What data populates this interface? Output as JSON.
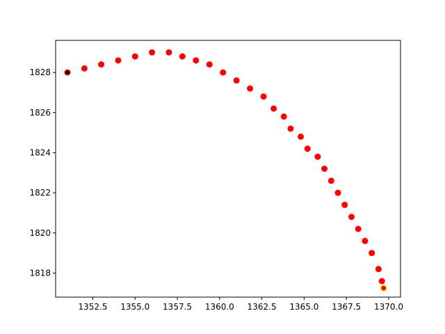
{
  "chart_data": {
    "type": "scatter",
    "title": "",
    "xlabel": "",
    "ylabel": "",
    "xlim": [
      1350.3,
      1370.7
    ],
    "ylim": [
      1816.8,
      1829.6
    ],
    "x_ticks": [
      1352.5,
      1355.0,
      1357.5,
      1360.0,
      1362.5,
      1365.0,
      1367.5,
      1370.0
    ],
    "x_tick_labels": [
      "1352.5",
      "1355.0",
      "1357.5",
      "1360.0",
      "1362.5",
      "1365.0",
      "1367.5",
      "1370.0"
    ],
    "y_ticks": [
      1818,
      1820,
      1822,
      1824,
      1826,
      1828
    ],
    "y_tick_labels": [
      "1818",
      "1820",
      "1822",
      "1824",
      "1826",
      "1828"
    ],
    "grid": false,
    "series": [
      {
        "color": "#ff0000",
        "x": [
          1351.0,
          1352.0,
          1353.0,
          1354.0,
          1355.0,
          1356.0,
          1357.0,
          1357.8,
          1358.6,
          1359.4,
          1360.2,
          1361.0,
          1361.8,
          1362.6,
          1363.2,
          1363.8,
          1364.2,
          1364.8,
          1365.2,
          1365.8,
          1366.2,
          1366.6,
          1367.0,
          1367.4,
          1367.8,
          1368.2,
          1368.6,
          1369.0,
          1369.4,
          1369.6
        ],
        "y": [
          1828.0,
          1828.2,
          1828.4,
          1828.6,
          1828.8,
          1829.0,
          1829.0,
          1828.8,
          1828.6,
          1828.4,
          1828.0,
          1827.6,
          1827.2,
          1826.8,
          1826.2,
          1825.8,
          1825.2,
          1824.8,
          1824.2,
          1823.8,
          1823.2,
          1822.6,
          1822.0,
          1821.4,
          1820.8,
          1820.2,
          1819.6,
          1819.0,
          1818.2,
          1817.6
        ]
      }
    ],
    "start_point": {
      "x": 1351.0,
      "y": 1828.0,
      "color": "#000000"
    },
    "end_point": {
      "x": 1369.7,
      "y": 1817.25,
      "color": "#ff0000",
      "edge_color": "#ffd700"
    }
  }
}
